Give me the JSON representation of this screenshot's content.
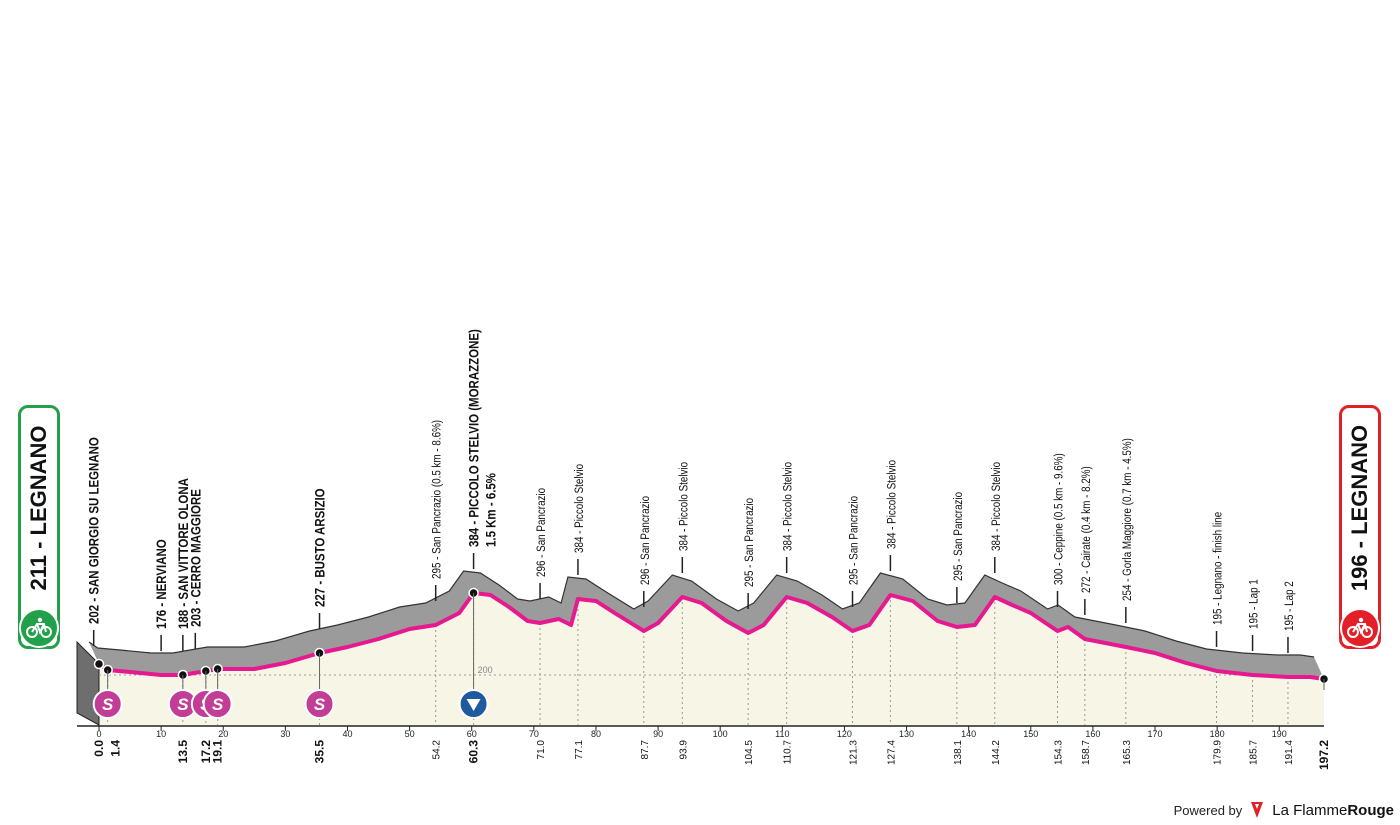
{
  "chart_data": {
    "type": "area",
    "xlim": [
      0,
      197.2
    ],
    "ylim": [
      150,
      420
    ],
    "reference_line": 200,
    "x_ticks": [
      0,
      10,
      20,
      30,
      40,
      50,
      60,
      70,
      80,
      90,
      100,
      110,
      120,
      130,
      140,
      150,
      160,
      170,
      180,
      190
    ],
    "km_markers": [
      {
        "km": 0.0,
        "label": "0.0",
        "bold": true
      },
      {
        "km": 1.4,
        "label": "1.4",
        "bold": true
      },
      {
        "km": 13.5,
        "label": "13.5",
        "bold": true
      },
      {
        "km": 17.2,
        "label": "17.2",
        "bold": true
      },
      {
        "km": 19.1,
        "label": "19.1",
        "bold": true
      },
      {
        "km": 35.5,
        "label": "35.5",
        "bold": true
      },
      {
        "km": 54.2,
        "label": "54.2",
        "bold": false
      },
      {
        "km": 60.3,
        "label": "60.3",
        "bold": true
      },
      {
        "km": 71.0,
        "label": "71.0",
        "bold": false
      },
      {
        "km": 77.1,
        "label": "77.1",
        "bold": false
      },
      {
        "km": 87.7,
        "label": "87.7",
        "bold": false
      },
      {
        "km": 93.9,
        "label": "93.9",
        "bold": false
      },
      {
        "km": 104.5,
        "label": "104.5",
        "bold": false
      },
      {
        "km": 110.7,
        "label": "110.7",
        "bold": false
      },
      {
        "km": 121.3,
        "label": "121.3",
        "bold": false
      },
      {
        "km": 127.4,
        "label": "127.4",
        "bold": false
      },
      {
        "km": 138.1,
        "label": "138.1",
        "bold": false
      },
      {
        "km": 144.2,
        "label": "144.2",
        "bold": false
      },
      {
        "km": 154.3,
        "label": "154.3",
        "bold": false
      },
      {
        "km": 158.7,
        "label": "158.7",
        "bold": false
      },
      {
        "km": 165.3,
        "label": "165.3",
        "bold": false
      },
      {
        "km": 179.9,
        "label": "179.9",
        "bold": false
      },
      {
        "km": 185.7,
        "label": "185.7",
        "bold": false
      },
      {
        "km": 191.4,
        "label": "191.4",
        "bold": false
      },
      {
        "km": 197.2,
        "label": "197.2",
        "bold": true
      }
    ],
    "elevation": [
      [
        0,
        211
      ],
      [
        1.4,
        205
      ],
      [
        5,
        203
      ],
      [
        10,
        200
      ],
      [
        13.5,
        200
      ],
      [
        17.2,
        204
      ],
      [
        19.1,
        206
      ],
      [
        25,
        206
      ],
      [
        30,
        212
      ],
      [
        35.5,
        222
      ],
      [
        40,
        228
      ],
      [
        45,
        236
      ],
      [
        50,
        246
      ],
      [
        54.2,
        250
      ],
      [
        58,
        262
      ],
      [
        60.3,
        282
      ],
      [
        63,
        280
      ],
      [
        66,
        268
      ],
      [
        69,
        254
      ],
      [
        71,
        252
      ],
      [
        74,
        256
      ],
      [
        76,
        250
      ],
      [
        77.1,
        276
      ],
      [
        80,
        274
      ],
      [
        83,
        262
      ],
      [
        87.7,
        244
      ],
      [
        90,
        252
      ],
      [
        93.9,
        278
      ],
      [
        97,
        272
      ],
      [
        101,
        254
      ],
      [
        104.5,
        242
      ],
      [
        107,
        250
      ],
      [
        110.7,
        278
      ],
      [
        114,
        272
      ],
      [
        118,
        258
      ],
      [
        121.3,
        244
      ],
      [
        124,
        250
      ],
      [
        127.4,
        280
      ],
      [
        131,
        274
      ],
      [
        135,
        254
      ],
      [
        138.1,
        248
      ],
      [
        141,
        250
      ],
      [
        144.2,
        278
      ],
      [
        147,
        270
      ],
      [
        150,
        262
      ],
      [
        154.3,
        244
      ],
      [
        156,
        248
      ],
      [
        158.7,
        236
      ],
      [
        162,
        232
      ],
      [
        165.3,
        228
      ],
      [
        170,
        222
      ],
      [
        175,
        212
      ],
      [
        179.9,
        204
      ],
      [
        185.7,
        200
      ],
      [
        191.4,
        198
      ],
      [
        195,
        198
      ],
      [
        197.2,
        196
      ]
    ],
    "route_points": [
      {
        "km": 1.4
      },
      {
        "km": 13.5
      },
      {
        "km": 17.2
      },
      {
        "km": 19.1
      },
      {
        "km": 35.5
      },
      {
        "km": 60.3
      },
      {
        "km": 197.2
      }
    ],
    "sprints": [
      {
        "km": 1.4
      },
      {
        "km": 13.5
      },
      {
        "km": 17.2
      },
      {
        "km": 19.1
      },
      {
        "km": 35.5
      }
    ],
    "sprint_symbol": "S",
    "kom": [
      {
        "km": 60.3
      }
    ],
    "place_labels": [
      {
        "km": 1.4,
        "text": "202 - SAN GIORGIO SU LEGNANO",
        "bold": true
      },
      {
        "km": 10.0,
        "text": "176 - NERVIANO",
        "bold": true
      },
      {
        "km": 13.5,
        "text": "188 - SAN VITTORE OLONA",
        "bold": true
      },
      {
        "km": 15.5,
        "text": "203 - CERRO MAGGIORE",
        "bold": true
      },
      {
        "km": 35.5,
        "text": "227 - BUSTO ARSIZIO",
        "bold": true
      },
      {
        "km": 54.2,
        "text": "295 - San Pancrazio (0.5 km - 8.6%)",
        "bold": false
      },
      {
        "km": 60.3,
        "text": "384 - PICCOLO STELVIO (MORAZZONE)",
        "bold": true,
        "sub": "1.5 Km - 6.5%"
      },
      {
        "km": 71.0,
        "text": "296 - San Pancrazio",
        "bold": false
      },
      {
        "km": 77.1,
        "text": "384 - Piccolo Stelvio",
        "bold": false
      },
      {
        "km": 87.7,
        "text": "296 - San Pancrazio",
        "bold": false
      },
      {
        "km": 93.9,
        "text": "384 - Piccolo Stelvio",
        "bold": false
      },
      {
        "km": 104.5,
        "text": "295 - San Pancrazio",
        "bold": false
      },
      {
        "km": 110.7,
        "text": "384 - Piccolo Stelvio",
        "bold": false
      },
      {
        "km": 121.3,
        "text": "295 - San Pancrazio",
        "bold": false
      },
      {
        "km": 127.4,
        "text": "384 - Piccolo Stelvio",
        "bold": false
      },
      {
        "km": 138.1,
        "text": "295 - San Pancrazio",
        "bold": false
      },
      {
        "km": 144.2,
        "text": "384 - Piccolo Stelvio",
        "bold": false
      },
      {
        "km": 154.3,
        "text": "300 - Ceppine (0.5 km - 9.6%)",
        "bold": false
      },
      {
        "km": 158.7,
        "text": "272 - Cairate (0.4 km - 8.2%)",
        "bold": false
      },
      {
        "km": 165.3,
        "text": "254 - Gorla Maggiore (0.7 km - 4.5%)",
        "bold": false
      },
      {
        "km": 179.9,
        "text": "195 - Legnano - finish line",
        "bold": false
      },
      {
        "km": 185.7,
        "text": "195 - Lap 1",
        "bold": false
      },
      {
        "km": 191.4,
        "text": "195 - Lap 2",
        "bold": false
      }
    ],
    "start": {
      "altitude": "211",
      "name": "LEGNANO",
      "color": "#22a04a"
    },
    "finish": {
      "altitude": "196",
      "name": "LEGNANO",
      "color": "#e32028"
    },
    "colors": {
      "relief": "#9b9b9b",
      "route": "#e6198f",
      "fill": "#f6f5e6",
      "sprint": "#c13d96",
      "kom": "#1f5a9e"
    }
  },
  "start_label": "211 - LEGNANO",
  "finish_label": "196 - LEGNANO",
  "branding": {
    "powered_by": "Powered by",
    "brand_light": "La Flamme",
    "brand_bold": "Rouge"
  }
}
